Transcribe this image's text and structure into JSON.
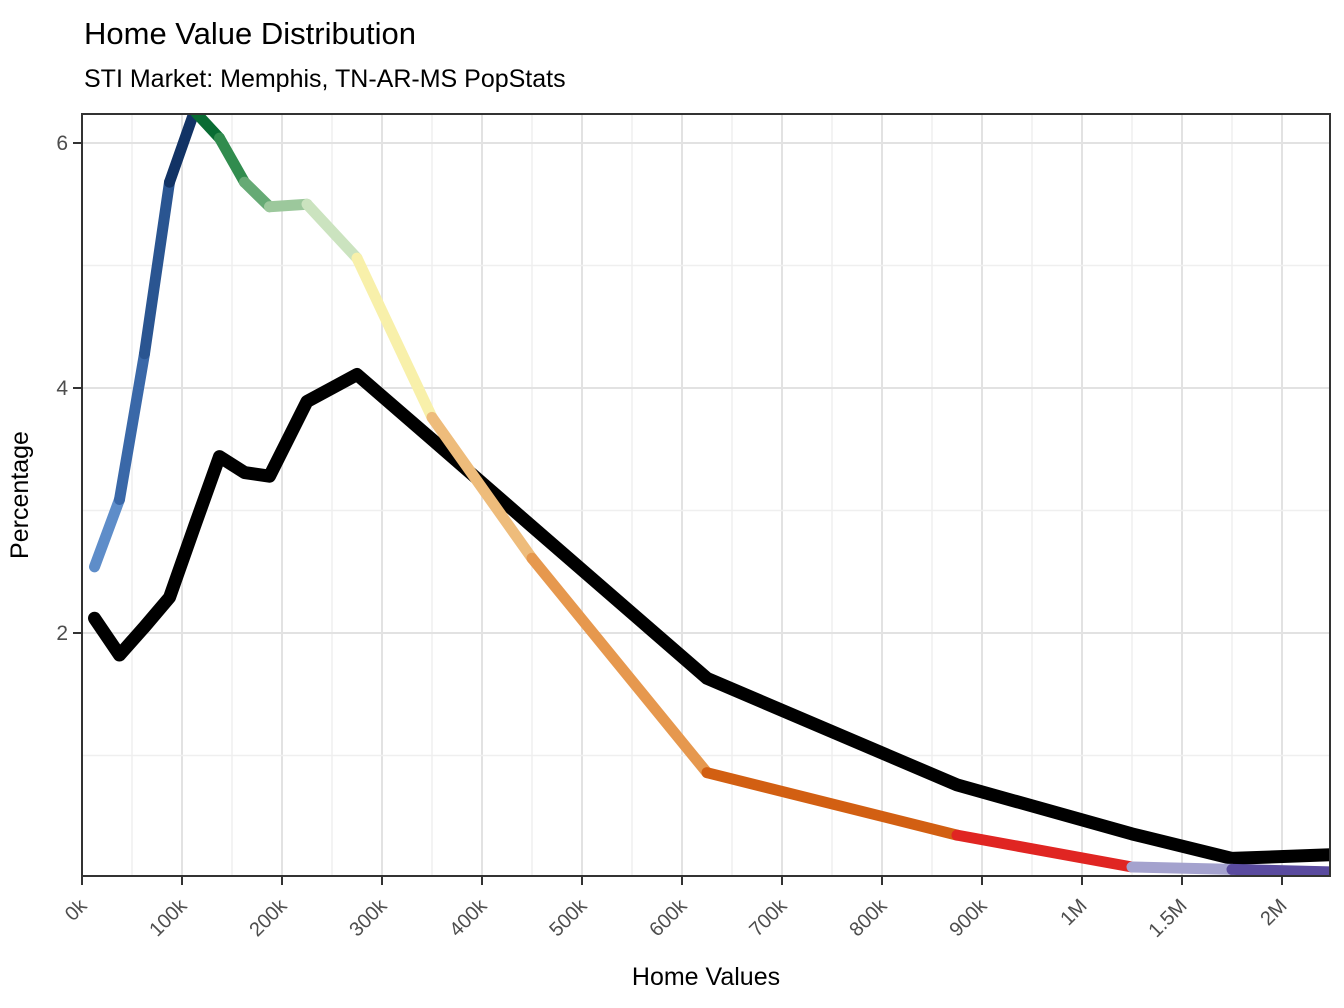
{
  "chart_data": {
    "type": "line",
    "title": "Home Value Distribution",
    "subtitle": "STI Market: Memphis, TN-AR-MS PopStats",
    "xlabel": "Home Values",
    "ylabel": "Percentage",
    "x_tick_labels": [
      "0k",
      "100k",
      "200k",
      "300k",
      "400k",
      "500k",
      "600k",
      "700k",
      "800k",
      "900k",
      "1M",
      "1.5M",
      "2M"
    ],
    "x_breaks_k": [
      0,
      100,
      200,
      300,
      400,
      500,
      600,
      700,
      800,
      900,
      1000,
      1500,
      2000
    ],
    "y_ticks": [
      2,
      4,
      6
    ],
    "y_minor_gridlines": [
      1,
      3,
      5
    ],
    "ylim": [
      0,
      6.24
    ],
    "grid": "on",
    "legend": "none",
    "x_bin_midpoints_k": [
      12.5,
      37.5,
      62.5,
      87.5,
      112.5,
      137.5,
      162.5,
      187.5,
      225,
      275,
      350,
      450,
      625,
      875,
      1250,
      1750,
      2250
    ],
    "series": [
      {
        "id": "black-line",
        "color": "#000000",
        "stroke_width": 13,
        "values": [
          2.12,
          1.82,
          2.05,
          2.29,
          2.87,
          3.44,
          3.31,
          3.28,
          3.89,
          4.11,
          3.58,
          2.87,
          1.63,
          0.76,
          0.36,
          0.16,
          0.19
        ]
      },
      {
        "id": "rainbow-line",
        "stroke_width": 11,
        "segment_colors": [
          "#5E8DC9",
          "#3A68A8",
          "#2A5591",
          "#123365",
          "#096C33",
          "#318C4E",
          "#66AA75",
          "#9CC89C",
          "#CBE3BF",
          "#F8F0AA",
          "#EEBC7B",
          "#E6984E",
          "#D25F12",
          "#E02522",
          "#A4A2CE",
          "#5A4B9F"
        ],
        "values": [
          2.54,
          3.09,
          4.28,
          5.68,
          6.26,
          6.04,
          5.68,
          5.48,
          5.5,
          5.06,
          3.76,
          2.61,
          0.86,
          0.35,
          0.09,
          0.07,
          0.05
        ]
      }
    ],
    "colors": {
      "grid_major": "#e2e2e2",
      "grid_minor": "#efefef",
      "panel_border": "#333333",
      "tick": "#333333",
      "tick_label": "#4d4d4d",
      "text": "#000000",
      "panel_bg": "#ffffff"
    }
  }
}
